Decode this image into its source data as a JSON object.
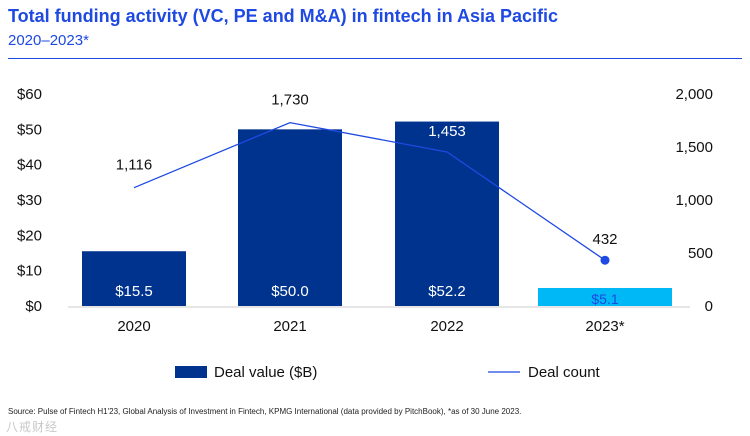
{
  "header": {
    "title": "Total funding activity (VC, PE and M&A) in fintech in Asia Pacific",
    "subtitle": "2020–2023*"
  },
  "chart_data": {
    "type": "bar",
    "categories": [
      "2020",
      "2021",
      "2022",
      "2023*"
    ],
    "series": [
      {
        "name": "Deal value ($B)",
        "kind": "bar",
        "axis": "left",
        "values": [
          15.5,
          50.0,
          52.2,
          5.1
        ],
        "labels": [
          "$15.5",
          "$50.0",
          "$52.2",
          "$5.1"
        ],
        "colors": [
          "#00338d",
          "#00338d",
          "#00338d",
          "#00b8f5"
        ]
      },
      {
        "name": "Deal count",
        "kind": "line",
        "axis": "right",
        "values": [
          1116,
          1730,
          1453,
          432
        ],
        "labels": [
          "1,116",
          "1,730",
          "1,453",
          "432"
        ],
        "color": "#1e49e2"
      }
    ],
    "y_left": {
      "ylim": [
        0,
        60
      ],
      "ticks": [
        "$0",
        "$10",
        "$20",
        "$30",
        "$40",
        "$50",
        "$60"
      ]
    },
    "y_right": {
      "ylim": [
        0,
        2000
      ],
      "ticks": [
        "0",
        "500",
        "1,000",
        "1,500",
        "2,000"
      ]
    },
    "legend": {
      "position": "bottom",
      "items": [
        "Deal value ($B)",
        "Deal count"
      ]
    },
    "grid": false
  },
  "footer": {
    "source": "Source: Pulse of Fintech H1'23, Global Analysis of Investment in Fintech, KPMG International (data provided by PitchBook), *as of 30 June 2023.",
    "watermark": "八戒财经"
  }
}
